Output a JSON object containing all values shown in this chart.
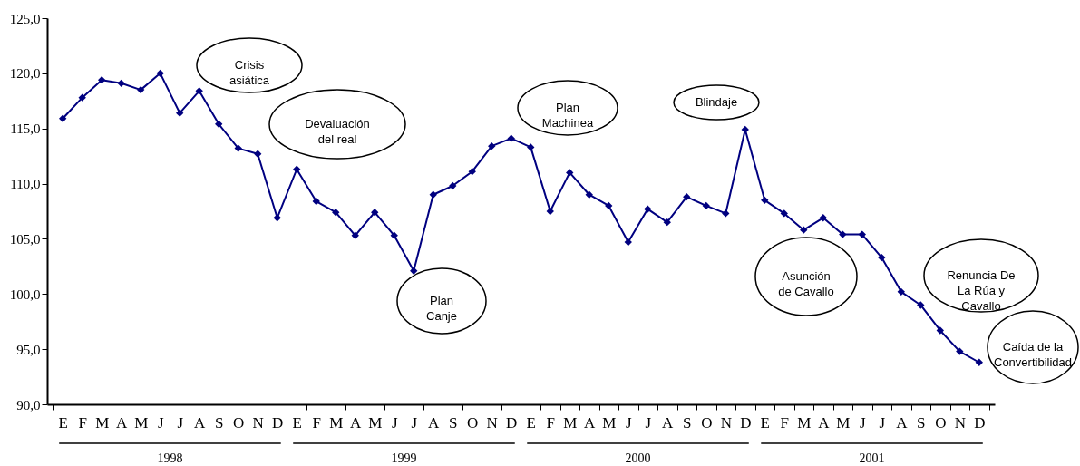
{
  "chart_data": {
    "type": "line",
    "categories": [
      "E",
      "F",
      "M",
      "A",
      "M",
      "J",
      "J",
      "A",
      "S",
      "O",
      "N",
      "D",
      "E",
      "F",
      "M",
      "A",
      "M",
      "J",
      "J",
      "A",
      "S",
      "O",
      "N",
      "D",
      "E",
      "F",
      "M",
      "A",
      "M",
      "J",
      "J",
      "A",
      "S",
      "O",
      "N",
      "D",
      "E",
      "F",
      "M",
      "A",
      "M",
      "J",
      "J",
      "A",
      "S",
      "O",
      "N",
      "D"
    ],
    "series": [
      {
        "color": "#000080",
        "values": [
          115.9,
          117.8,
          119.4,
          119.1,
          118.5,
          120.0,
          116.4,
          118.4,
          115.4,
          113.2,
          112.7,
          106.9,
          111.3,
          108.4,
          107.4,
          105.3,
          107.4,
          105.3,
          102.1,
          109.0,
          109.8,
          111.1,
          113.4,
          114.1,
          113.3,
          107.5,
          111.0,
          109.0,
          108.0,
          104.7,
          107.7,
          106.5,
          108.8,
          108.0,
          107.3,
          114.9,
          108.5,
          107.3,
          105.8,
          106.9,
          105.4,
          105.4,
          103.3,
          100.2,
          99.0,
          96.7,
          94.8,
          93.8
        ]
      }
    ],
    "ylim": [
      90,
      125
    ],
    "yticks": [
      {
        "value": 90,
        "label": "90,0"
      },
      {
        "value": 95,
        "label": "95,0"
      },
      {
        "value": 100,
        "label": "100,0"
      },
      {
        "value": 105,
        "label": "105,0"
      },
      {
        "value": 110,
        "label": "110,0"
      },
      {
        "value": 115,
        "label": "115,0"
      },
      {
        "value": 120,
        "label": "120,0"
      },
      {
        "value": 125,
        "label": "125,0"
      }
    ],
    "marker": "diamond",
    "line_style": "solid",
    "grid": false,
    "annotations": [
      "1998",
      "1999",
      "2000",
      "2001",
      "Crisis\nasiática",
      "Devaluación\ndel real",
      "Plan\nCanje",
      "Plan\nMachinea",
      "Blindaje",
      "Asunción\nde Cavallo",
      "Renuncia De\nLa Rúa y\nCavallo",
      "Caída de la\nConvertibilidad"
    ]
  }
}
